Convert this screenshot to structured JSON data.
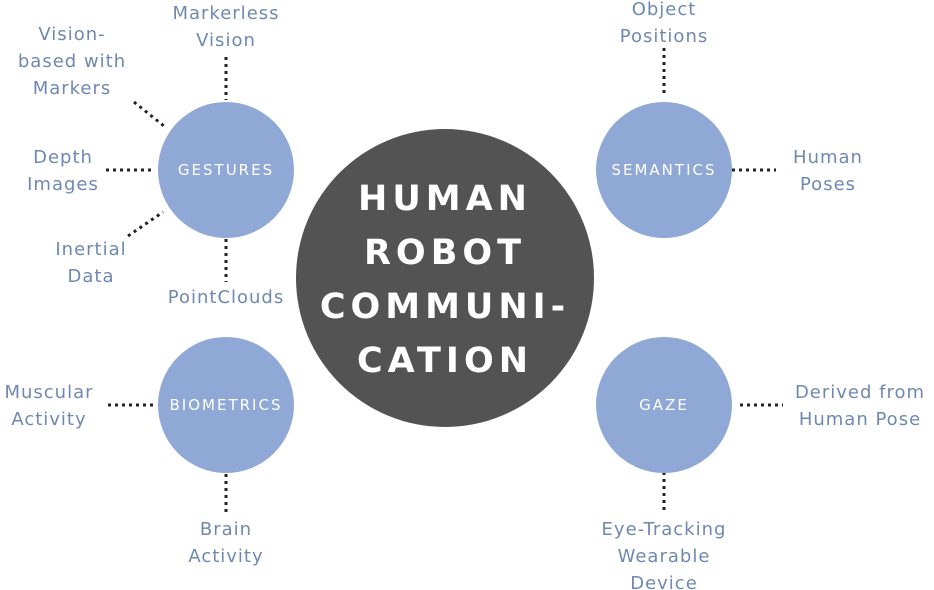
{
  "center": {
    "lines": [
      "HUMAN",
      "ROBOT",
      "COMMUNI-",
      "CATION"
    ]
  },
  "nodes": {
    "gestures": {
      "label": "GESTURES"
    },
    "semantics": {
      "label": "SEMANTICS"
    },
    "biometrics": {
      "label": "BIOMETRICS"
    },
    "gaze": {
      "label": "GAZE"
    }
  },
  "leaves": {
    "markerless_vision": [
      "Markerless",
      "Vision"
    ],
    "vision_markers": [
      "Vision-",
      "based with",
      "Markers"
    ],
    "depth_images": [
      "Depth",
      "Images"
    ],
    "inertial_data": [
      "Inertial",
      "Data"
    ],
    "pointclouds": [
      "PointClouds"
    ],
    "object_positions": [
      "Object",
      "Positions"
    ],
    "human_poses": [
      "Human",
      "Poses"
    ],
    "muscular_activity": [
      "Muscular",
      "Activity"
    ],
    "brain_activity": [
      "Brain",
      "Activity"
    ],
    "derived_pose": [
      "Derived from",
      "Human Pose"
    ],
    "eye_tracking": [
      "Eye-Tracking",
      "Wearable",
      "Device"
    ]
  },
  "colors": {
    "center": "#535353",
    "node": "#8fa8d6",
    "leaf_text": "#6f88b2",
    "connector": "#222222"
  }
}
